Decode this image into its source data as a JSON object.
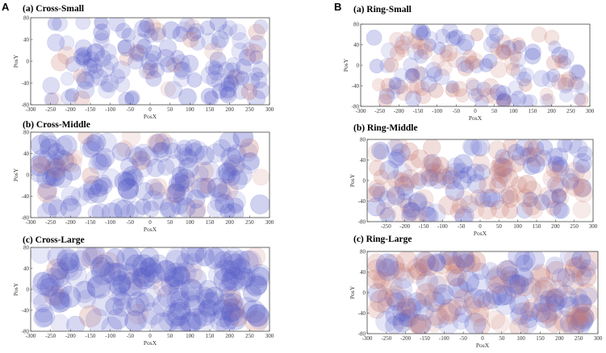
{
  "figure": {
    "panel_labels": [
      "A",
      "B"
    ],
    "colors": {
      "blue": "#5a5fc8",
      "red": "#c87a72",
      "frame": "#444444"
    }
  },
  "chart_data": [
    {
      "id": "cross-small",
      "type": "scatter",
      "title": "(a) Cross-Small",
      "xlabel": "PosX",
      "ylabel": "PosY",
      "xlim": [
        -300,
        300
      ],
      "ylim": [
        -80,
        80
      ],
      "xticks": [
        -300,
        -250,
        -200,
        -150,
        -100,
        -50,
        0,
        50,
        100,
        150,
        200,
        250,
        300
      ],
      "yticks": [
        -80,
        -40,
        0,
        40,
        80
      ],
      "marker_radius": 13,
      "n_points": 150,
      "red_fraction": 0.12,
      "seed": 11,
      "series": [
        {
          "name": "blue-particles",
          "color": "#5a5fc8"
        },
        {
          "name": "red-particles",
          "color": "#c87a72"
        }
      ]
    },
    {
      "id": "cross-middle",
      "type": "scatter",
      "title": "(b) Cross-Middle",
      "xlabel": "PosX",
      "ylabel": "PosY",
      "xlim": [
        -300,
        300
      ],
      "ylim": [
        -80,
        80
      ],
      "xticks": [
        -300,
        -250,
        -200,
        -150,
        -100,
        -50,
        0,
        50,
        100,
        150,
        200,
        250,
        300
      ],
      "yticks": [
        -80,
        -40,
        0,
        40,
        80
      ],
      "marker_radius": 15,
      "n_points": 170,
      "red_fraction": 0.1,
      "seed": 23,
      "series": [
        {
          "name": "blue-particles",
          "color": "#5a5fc8"
        },
        {
          "name": "red-particles",
          "color": "#c87a72"
        }
      ]
    },
    {
      "id": "cross-large",
      "type": "scatter",
      "title": "(c) Cross-Large",
      "xlabel": "PosX",
      "ylabel": "PosY",
      "xlim": [
        -300,
        300
      ],
      "ylim": [
        -80,
        80
      ],
      "xticks": [
        -300,
        -250,
        -200,
        -150,
        -100,
        -50,
        0,
        50,
        100,
        150,
        200,
        250,
        300
      ],
      "yticks": [
        -80,
        -40,
        0,
        40,
        80
      ],
      "marker_radius": 17,
      "n_points": 190,
      "red_fraction": 0.08,
      "seed": 37,
      "series": [
        {
          "name": "blue-particles",
          "color": "#5a5fc8"
        },
        {
          "name": "red-particles",
          "color": "#c87a72"
        }
      ]
    },
    {
      "id": "ring-small",
      "type": "scatter",
      "title": "(a) Ring-Small",
      "xlabel": "PosX",
      "ylabel": "PosY",
      "xlim": [
        -300,
        300
      ],
      "ylim": [
        -80,
        80
      ],
      "xticks": [
        -300,
        -250,
        -200,
        -150,
        -100,
        -50,
        0,
        50,
        100,
        150,
        200,
        250,
        300
      ],
      "yticks": [
        -80,
        -40,
        0,
        40,
        80
      ],
      "marker_radius": 12,
      "n_points": 150,
      "red_fraction": 0.45,
      "seed": 53,
      "series": [
        {
          "name": "blue-particles",
          "color": "#5a5fc8"
        },
        {
          "name": "red-particles",
          "color": "#c87a72"
        }
      ]
    },
    {
      "id": "ring-middle",
      "type": "scatter",
      "title": "(b) Ring-Middle",
      "xlabel": "PosX",
      "ylabel": "PosY",
      "xlim": [
        -300,
        300
      ],
      "ylim": [
        -80,
        80
      ],
      "xticks": [
        -250,
        -200,
        -150,
        -100,
        -50,
        0,
        50,
        100,
        150,
        200,
        250,
        300
      ],
      "yticks": [
        -80,
        -40,
        0,
        40,
        80
      ],
      "marker_radius": 14,
      "n_points": 170,
      "red_fraction": 0.45,
      "seed": 71,
      "series": [
        {
          "name": "blue-particles",
          "color": "#5a5fc8"
        },
        {
          "name": "red-particles",
          "color": "#c87a72"
        }
      ]
    },
    {
      "id": "ring-large",
      "type": "scatter",
      "title": "(c) Ring-Large",
      "xlabel": "PosX",
      "ylabel": "PosY",
      "xlim": [
        -300,
        300
      ],
      "ylim": [
        -80,
        80
      ],
      "xticks": [
        -300,
        -250,
        -200,
        -150,
        -100,
        -50,
        0,
        50,
        100,
        150,
        200,
        250,
        300
      ],
      "yticks": [
        -80,
        -40,
        0,
        40,
        80
      ],
      "marker_radius": 16,
      "n_points": 190,
      "red_fraction": 0.5,
      "seed": 97,
      "series": [
        {
          "name": "blue-particles",
          "color": "#5a5fc8"
        },
        {
          "name": "red-particles",
          "color": "#c87a72"
        }
      ]
    }
  ]
}
